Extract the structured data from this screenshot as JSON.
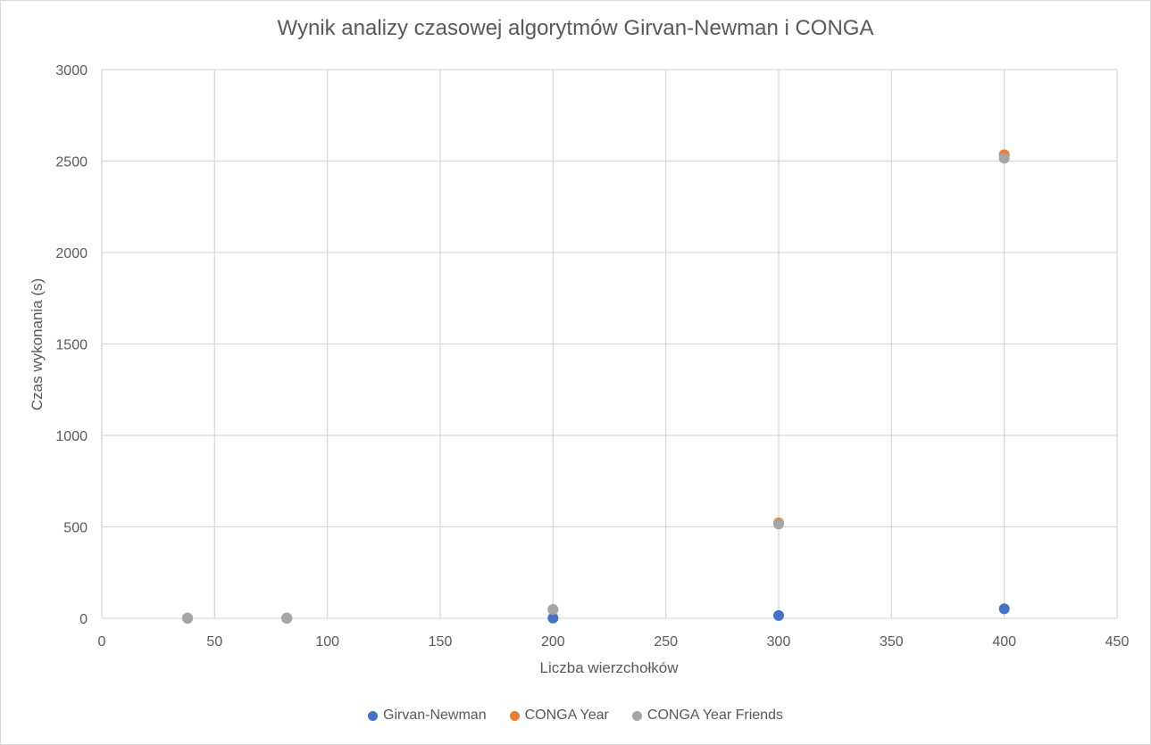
{
  "chart_data": {
    "type": "scatter",
    "title": "Wynik analizy czasowej algorytmów Girvan-Newman i CONGA",
    "xlabel": "Liczba wierzchołków",
    "ylabel": "Czas wykonania (s)",
    "xlim": [
      0,
      450
    ],
    "ylim": [
      0,
      3000
    ],
    "xticks": [
      0,
      50,
      100,
      150,
      200,
      250,
      300,
      350,
      400,
      450
    ],
    "yticks": [
      0,
      500,
      1000,
      1500,
      2000,
      2500,
      3000
    ],
    "grid": true,
    "legend_position": "bottom",
    "series": [
      {
        "name": "Girvan-Newman",
        "color": "#4472c4",
        "points": [
          [
            38,
            0.5
          ],
          [
            82,
            0.5
          ],
          [
            200,
            1
          ],
          [
            300,
            15
          ],
          [
            400,
            52
          ]
        ]
      },
      {
        "name": "CONGA Year",
        "color": "#ed7d31",
        "points": [
          [
            38,
            1
          ],
          [
            82,
            1.5
          ],
          [
            200,
            48
          ],
          [
            300,
            522
          ],
          [
            400,
            2535
          ]
        ]
      },
      {
        "name": "CONGA Year Friends",
        "color": "#a5a5a5",
        "points": [
          [
            38,
            1
          ],
          [
            82,
            1.5
          ],
          [
            200,
            48
          ],
          [
            300,
            515
          ],
          [
            400,
            2515
          ]
        ]
      }
    ]
  }
}
